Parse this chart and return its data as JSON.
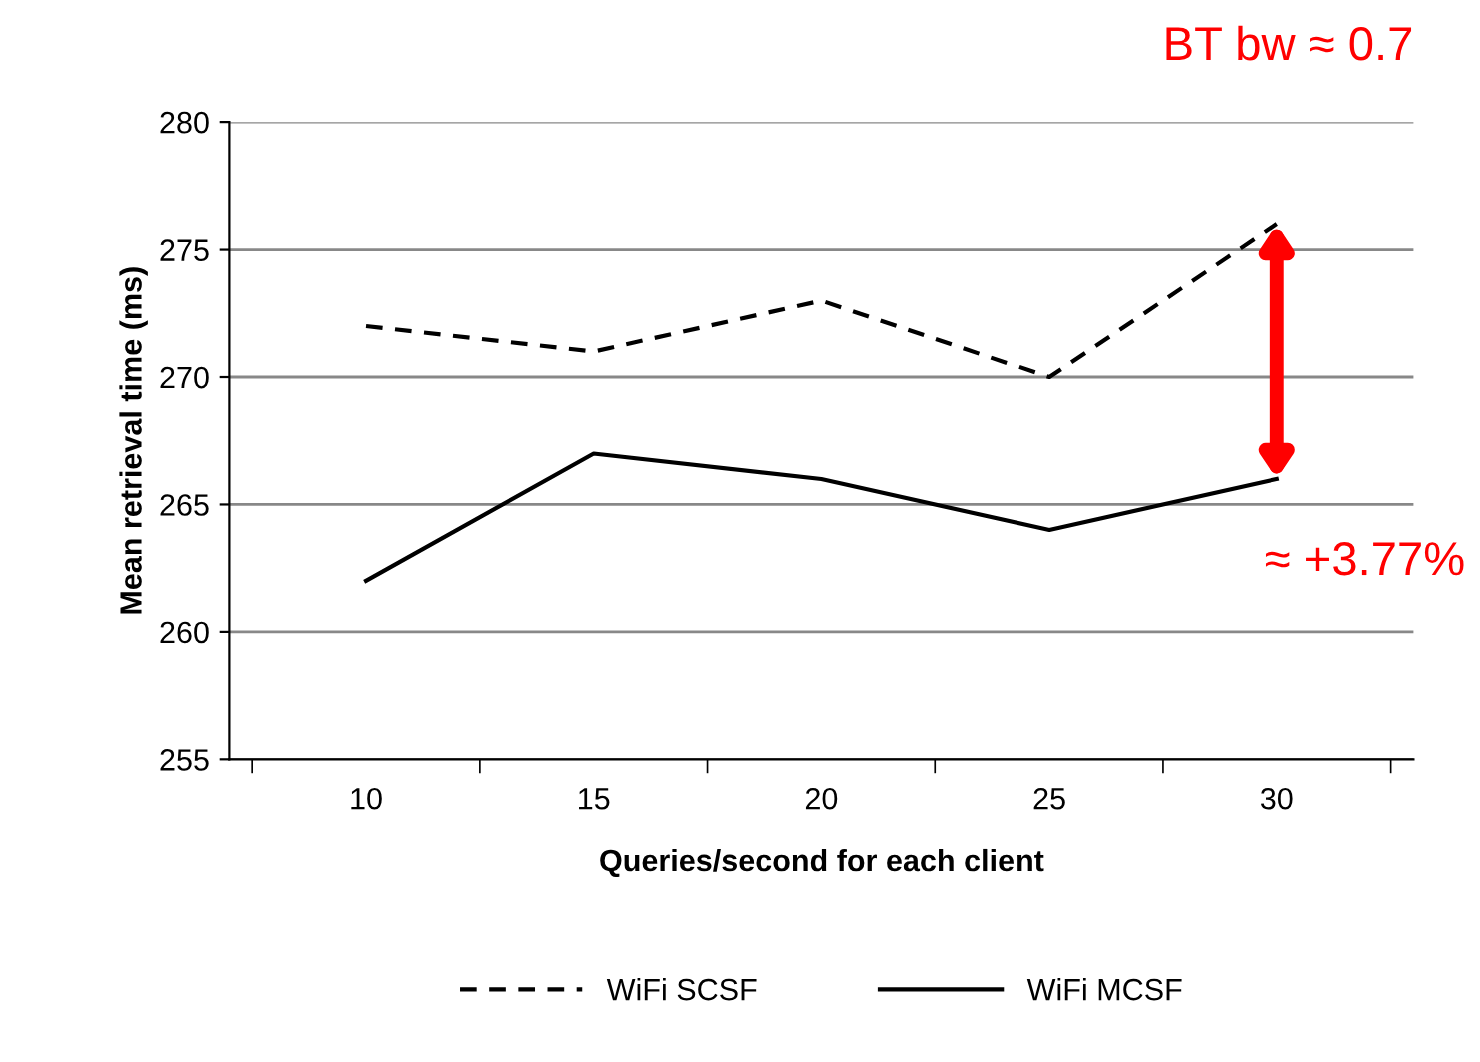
{
  "chart_data": {
    "type": "line",
    "xlabel": "Queries/second for each client",
    "ylabel": "Mean retrieval time (ms)",
    "categories": [
      "10",
      "15",
      "20",
      "25",
      "30"
    ],
    "series": [
      {
        "name": "WiFi SCSF",
        "color": "#000000",
        "values": [
          272,
          271,
          273,
          270,
          276
        ],
        "line_style": "dashed"
      },
      {
        "name": "WiFi MCSF",
        "color": "#000000",
        "values": [
          262,
          267,
          266,
          264,
          266
        ],
        "line_style": "solid"
      }
    ],
    "ylim": [
      255,
      280
    ],
    "yticks": [
      255,
      260,
      265,
      270,
      275,
      280
    ],
    "grid": "y",
    "legend": "bottom",
    "marker": "none",
    "annotations": [
      "BT bw ≈ 0.7",
      "≈ +3.77%"
    ]
  }
}
